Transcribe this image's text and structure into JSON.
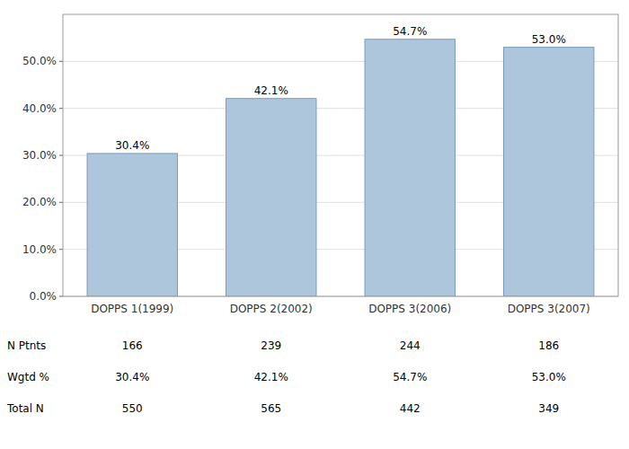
{
  "chart_data": {
    "type": "bar",
    "categories": [
      "DOPPS 1(1999)",
      "DOPPS 2(2002)",
      "DOPPS 3(2006)",
      "DOPPS 3(2007)"
    ],
    "values": [
      0.304,
      0.421,
      0.547,
      0.53
    ],
    "value_labels": [
      "30.4%",
      "42.1%",
      "54.7%",
      "53.0%"
    ],
    "data_labels": true,
    "color": "#aec6dc",
    "grid": true,
    "ylim": [
      0,
      0.6
    ],
    "yticks": [
      {
        "value": 0.0,
        "label": "0.0%"
      },
      {
        "value": 0.1,
        "label": "10.0%"
      },
      {
        "value": 0.2,
        "label": "20.0%"
      },
      {
        "value": 0.3,
        "label": "30.0%"
      },
      {
        "value": 0.4,
        "label": "40.0%"
      },
      {
        "value": 0.5,
        "label": "50.0%"
      }
    ],
    "table": {
      "row_labels": [
        "N Ptnts",
        "Wgtd %",
        "Total N"
      ],
      "cells": [
        [
          "166",
          "239",
          "244",
          "186"
        ],
        [
          "30.4%",
          "42.1%",
          "54.7%",
          "53.0%"
        ],
        [
          "550",
          "565",
          "442",
          "349"
        ]
      ]
    }
  }
}
